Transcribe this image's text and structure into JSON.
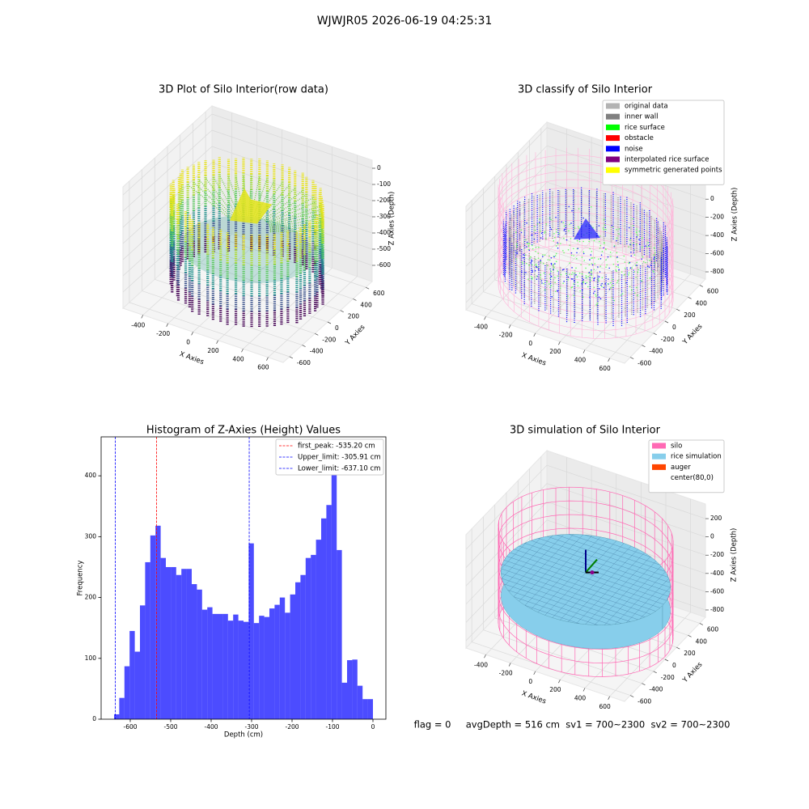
{
  "title": "WJWJR05 2026-06-19 04:25:31",
  "footer": "flag = 0     avgDepth = 516 cm  sv1 = 700~2300  sv2 = 700~2300",
  "chart_data": [
    {
      "type": "scatter3d",
      "title": "3D Plot of Silo Interior(row data)",
      "xlabel": "X Axies",
      "ylabel": "Y Axies",
      "zlabel": "Z Axies (Depth)",
      "xlim": [
        -560,
        720
      ],
      "ylim": [
        -700,
        700
      ],
      "zlim": [
        -700,
        50
      ],
      "xticks": [
        -400,
        -200,
        0,
        200,
        400,
        600
      ],
      "yticks": [
        -600,
        -400,
        -200,
        0,
        200,
        400,
        600
      ],
      "zticks": [
        0,
        -100,
        -200,
        -300,
        -400,
        -500,
        -600
      ]
    },
    {
      "type": "scatter3d",
      "title": "3D classify of Silo Interior",
      "xlabel": "X Axies",
      "ylabel": "Y Axies",
      "zlabel": "Z Axies (Depth)",
      "xlim": [
        -560,
        720
      ],
      "ylim": [
        -700,
        700
      ],
      "zlim": [
        -880,
        260
      ],
      "xticks": [
        -400,
        -200,
        0,
        200,
        400,
        600
      ],
      "yticks": [
        -600,
        -400,
        -200,
        0,
        200,
        400,
        600
      ],
      "zticks": [
        200,
        0,
        -200,
        -400,
        -600,
        -800
      ],
      "legend_position": "upper right",
      "legend": [
        {
          "name": "original data",
          "color": "#b3b3b3"
        },
        {
          "name": "inner wall",
          "color": "#808080"
        },
        {
          "name": "rice surface",
          "color": "#00ff00"
        },
        {
          "name": "obstacle",
          "color": "#ff0000"
        },
        {
          "name": "noise",
          "color": "#0000ff"
        },
        {
          "name": "interpolated rice surface",
          "color": "#800080"
        },
        {
          "name": "symmetric generated points",
          "color": "#ffff00"
        }
      ]
    },
    {
      "type": "histogram",
      "title": "Histogram of Z-Axies (Height) Values",
      "xlabel": "Depth (cm)",
      "ylabel": "Frequency",
      "color": "#0000ff",
      "bins": [
        -640,
        -627.2,
        -614.4,
        -601.6,
        -588.8,
        -576,
        -563.2,
        -550.4,
        -537.6,
        -524.8,
        -512,
        -499.2,
        -486.4,
        -473.6,
        -460.8,
        -448,
        -435.2,
        -422.4,
        -409.6,
        -396.8,
        -384,
        -371.2,
        -358.4,
        -345.6,
        -332.8,
        -320,
        -307.2,
        -294.4,
        -281.6,
        -268.8,
        -256,
        -243.2,
        -230.4,
        -217.6,
        -204.8,
        -192,
        -179.2,
        -166.4,
        -153.6,
        -140.8,
        -128,
        -115.2,
        -102.4,
        -89.6,
        -76.8,
        -64,
        -51.2,
        -38.4,
        -25.6,
        -12.8,
        0
      ],
      "values": [
        8,
        35,
        87,
        145,
        111,
        187,
        258,
        302,
        318,
        265,
        250,
        250,
        237,
        247,
        247,
        222,
        213,
        180,
        184,
        173,
        173,
        173,
        162,
        172,
        162,
        160,
        289,
        158,
        170,
        168,
        182,
        188,
        200,
        175,
        205,
        225,
        237,
        265,
        270,
        295,
        330,
        352,
        440,
        278,
        60,
        97,
        98,
        55,
        33,
        33
      ],
      "xlim": [
        -672,
        32
      ],
      "ylim": [
        0,
        464
      ],
      "xticks": [
        -600,
        -500,
        -400,
        -300,
        -200,
        -100,
        0
      ],
      "yticks": [
        0,
        100,
        200,
        300,
        400
      ],
      "legend_position": "upper right",
      "lines": [
        {
          "name": "first_peak: -535.20 cm",
          "value": -535.2,
          "color": "#ff0000"
        },
        {
          "name": "Upper_limit: -305.91 cm",
          "value": -305.91,
          "color": "#0000ff"
        },
        {
          "name": "Lower_limit: -637.10 cm",
          "value": -637.1,
          "color": "#0000ff"
        }
      ]
    },
    {
      "type": "surface3d",
      "title": "3D simulation of Silo Interior",
      "xlabel": "X Axies",
      "ylabel": "Y Axies",
      "zlabel": "Z Axies (Depth)",
      "xlim": [
        -560,
        720
      ],
      "ylim": [
        -700,
        700
      ],
      "zlim": [
        -880,
        360
      ],
      "xticks": [
        -400,
        -200,
        0,
        200,
        400,
        600
      ],
      "yticks": [
        -600,
        -400,
        -200,
        0,
        200,
        400,
        600
      ],
      "zticks": [
        200,
        0,
        -200,
        -400,
        -600,
        -800
      ],
      "legend_position": "upper right",
      "legend": [
        {
          "name": "silo",
          "color": "#ff69b4"
        },
        {
          "name": "rice simulation",
          "color": "#87ceeb"
        },
        {
          "name": "auger",
          "color": "#ff4500"
        },
        {
          "name": "center(80,0)",
          "color": "#ffffff"
        }
      ]
    }
  ]
}
